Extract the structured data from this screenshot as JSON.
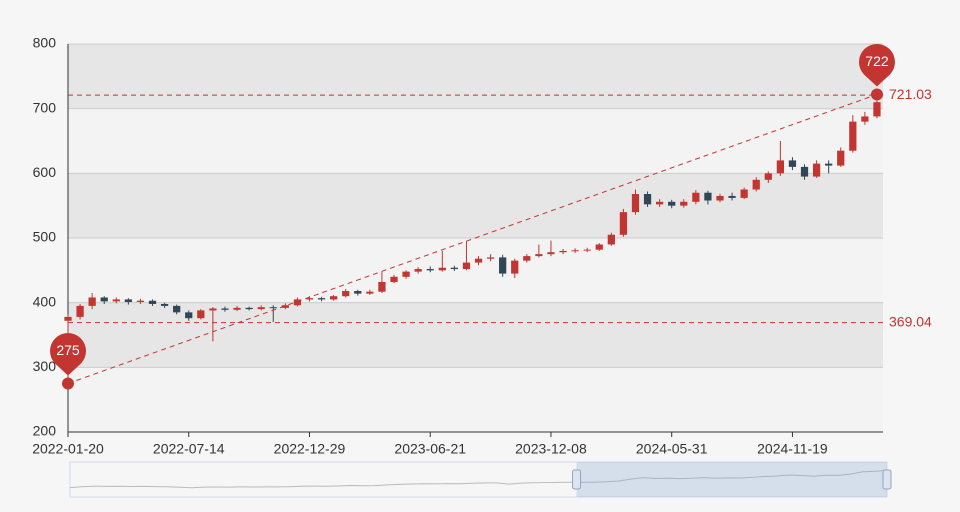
{
  "chart_data": {
    "type": "candlestick",
    "categories": [
      "2022-01-20",
      null,
      null,
      null,
      null,
      null,
      null,
      null,
      null,
      null,
      "2022-07-14",
      null,
      null,
      null,
      null,
      null,
      null,
      null,
      null,
      null,
      "2022-12-29",
      null,
      null,
      null,
      null,
      null,
      null,
      null,
      null,
      null,
      "2023-06-21",
      null,
      null,
      null,
      null,
      null,
      null,
      null,
      null,
      null,
      "2023-12-08",
      null,
      null,
      null,
      null,
      null,
      null,
      null,
      null,
      null,
      "2024-05-31",
      null,
      null,
      null,
      null,
      null,
      null,
      null,
      null,
      null,
      "2024-11-19",
      null,
      null,
      null,
      null,
      null,
      null,
      null
    ],
    "values": [
      [
        372,
        378,
        275,
        382
      ],
      [
        378,
        395,
        374,
        398
      ],
      [
        395,
        408,
        390,
        415
      ],
      [
        408,
        402,
        398,
        410
      ],
      [
        402,
        405,
        399,
        408
      ],
      [
        405,
        401,
        397,
        407
      ],
      [
        401,
        403,
        398,
        406
      ],
      [
        403,
        398,
        395,
        405
      ],
      [
        398,
        395,
        392,
        400
      ],
      [
        395,
        385,
        382,
        397
      ],
      [
        385,
        376,
        372,
        388
      ],
      [
        376,
        388,
        374,
        390
      ],
      [
        388,
        391,
        340,
        393
      ],
      [
        391,
        389,
        386,
        394
      ],
      [
        389,
        392,
        387,
        395
      ],
      [
        392,
        390,
        388,
        394
      ],
      [
        390,
        393,
        388,
        396
      ],
      [
        393,
        392,
        370,
        396
      ],
      [
        392,
        396,
        390,
        399
      ],
      [
        396,
        405,
        394,
        408
      ],
      [
        405,
        407,
        402,
        410
      ],
      [
        407,
        405,
        402,
        409
      ],
      [
        405,
        410,
        403,
        412
      ],
      [
        410,
        418,
        408,
        421
      ],
      [
        418,
        414,
        411,
        420
      ],
      [
        414,
        417,
        412,
        420
      ],
      [
        417,
        432,
        415,
        448
      ],
      [
        432,
        440,
        430,
        443
      ],
      [
        440,
        448,
        437,
        450
      ],
      [
        448,
        452,
        445,
        455
      ],
      [
        452,
        450,
        447,
        456
      ],
      [
        450,
        454,
        448,
        480
      ],
      [
        454,
        452,
        449,
        457
      ],
      [
        452,
        462,
        450,
        495
      ],
      [
        462,
        468,
        458,
        472
      ],
      [
        468,
        470,
        464,
        475
      ],
      [
        470,
        445,
        440,
        474
      ],
      [
        445,
        465,
        438,
        468
      ],
      [
        465,
        472,
        462,
        475
      ],
      [
        472,
        475,
        470,
        490
      ],
      [
        475,
        478,
        472,
        496
      ],
      [
        478,
        480,
        475,
        483
      ],
      [
        480,
        481,
        477,
        484
      ],
      [
        481,
        482,
        478,
        485
      ],
      [
        482,
        490,
        480,
        492
      ],
      [
        490,
        505,
        488,
        508
      ],
      [
        505,
        540,
        502,
        545
      ],
      [
        540,
        568,
        536,
        575
      ],
      [
        568,
        552,
        548,
        572
      ],
      [
        552,
        556,
        548,
        560
      ],
      [
        556,
        550,
        546,
        559
      ],
      [
        550,
        556,
        547,
        560
      ],
      [
        556,
        570,
        552,
        574
      ],
      [
        570,
        558,
        552,
        573
      ],
      [
        558,
        565,
        555,
        568
      ],
      [
        565,
        562,
        558,
        570
      ],
      [
        562,
        575,
        560,
        578
      ],
      [
        575,
        590,
        572,
        594
      ],
      [
        590,
        600,
        585,
        603
      ],
      [
        600,
        620,
        596,
        650
      ],
      [
        620,
        610,
        605,
        625
      ],
      [
        610,
        595,
        590,
        614
      ],
      [
        595,
        615,
        593,
        620
      ],
      [
        615,
        612,
        600,
        620
      ],
      [
        612,
        635,
        610,
        640
      ],
      [
        635,
        680,
        632,
        690
      ],
      [
        680,
        688,
        675,
        695
      ],
      [
        688,
        710,
        685,
        722
      ]
    ],
    "up_color": "#c23531",
    "down_color": "#314656",
    "ylim": [
      200,
      800
    ],
    "yticks": [
      200,
      300,
      400,
      500,
      600,
      700,
      800
    ],
    "split_area": true,
    "mark_points": [
      {
        "value": 275,
        "index": 0
      },
      {
        "value": 722,
        "index": 67
      }
    ],
    "mark_lines": [
      {
        "value": 721.03
      },
      {
        "value": 369.04
      }
    ],
    "datazoom": {
      "start": 62,
      "end": 100
    }
  }
}
